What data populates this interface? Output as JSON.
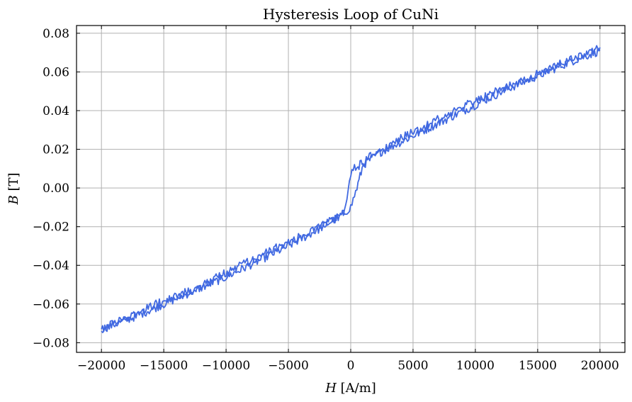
{
  "chart_data": {
    "type": "line",
    "title": "Hysteresis Loop of CuNi",
    "xlabel_var": "H",
    "xlabel_unit": " [A/m]",
    "ylabel_var": "B",
    "ylabel_unit": " [T]",
    "xlim": [
      -22000,
      22000
    ],
    "ylim": [
      -0.085,
      0.084
    ],
    "xticks": [
      -20000,
      -15000,
      -10000,
      -5000,
      0,
      5000,
      10000,
      15000,
      20000
    ],
    "xtick_labels": [
      "−20000",
      "−15000",
      "−10000",
      "−5000",
      "0",
      "5000",
      "10000",
      "15000",
      "20000"
    ],
    "yticks": [
      -0.08,
      -0.06,
      -0.04,
      -0.02,
      0.0,
      0.02,
      0.04,
      0.06,
      0.08
    ],
    "ytick_labels": [
      "−0.08",
      "−0.06",
      "−0.04",
      "−0.02",
      "0.00",
      "0.02",
      "0.04",
      "0.06",
      "0.08"
    ],
    "grid": true,
    "line_color": "#4169e1",
    "series": [
      {
        "branch": "descending",
        "x": [
          20000,
          17500,
          15000,
          12500,
          10000,
          7500,
          5000,
          2500,
          1500,
          1000,
          500,
          200,
          0,
          -200,
          -500,
          -1000,
          -2500,
          -5000,
          -7500,
          -10000,
          -12500,
          -15000,
          -17500,
          -20000
        ],
        "y": [
          0.072,
          0.066,
          0.059,
          0.052,
          0.045,
          0.037,
          0.029,
          0.02,
          0.016,
          0.013,
          0.011,
          0.01,
          0.005,
          -0.002,
          -0.013,
          -0.015,
          -0.02,
          -0.028,
          -0.036,
          -0.044,
          -0.052,
          -0.058,
          -0.066,
          -0.073
        ]
      },
      {
        "branch": "ascending",
        "x": [
          -20000,
          -17500,
          -15000,
          -12500,
          -10000,
          -7500,
          -5000,
          -2500,
          -1500,
          -1000,
          -500,
          -200,
          0,
          200,
          500,
          1000,
          2500,
          5000,
          7500,
          10000,
          12500,
          15000,
          17500,
          20000
        ],
        "y": [
          -0.073,
          -0.067,
          -0.06,
          -0.053,
          -0.046,
          -0.038,
          -0.03,
          -0.021,
          -0.017,
          -0.015,
          -0.013,
          -0.011,
          -0.01,
          -0.006,
          0.0,
          0.012,
          0.019,
          0.027,
          0.035,
          0.043,
          0.051,
          0.058,
          0.065,
          0.071
        ]
      }
    ]
  }
}
